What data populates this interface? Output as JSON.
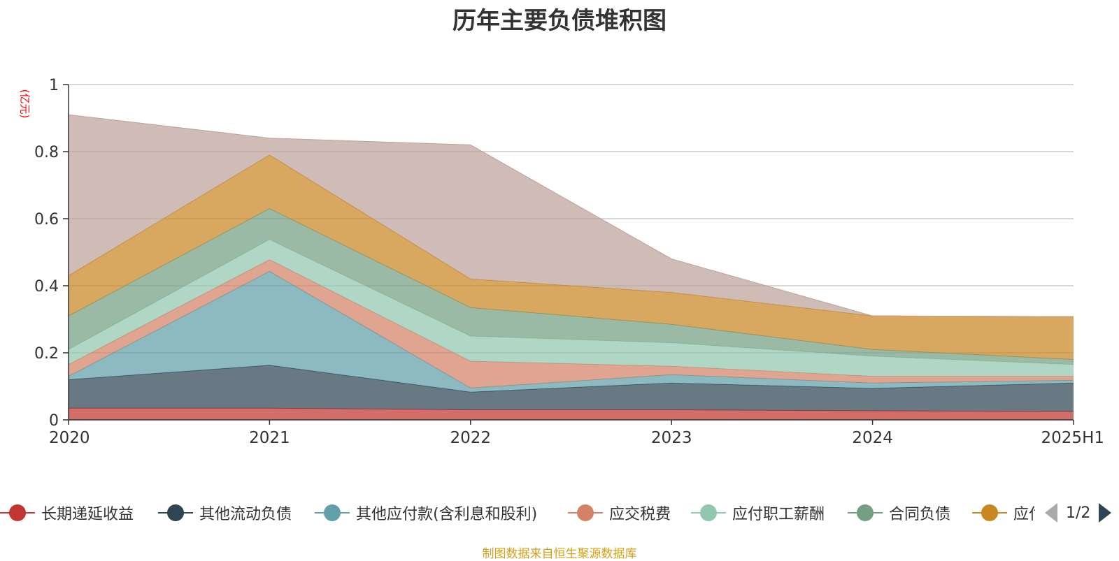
{
  "chart_data": {
    "type": "area",
    "title": "历年主要负债堆积图",
    "unit_label": "(亿元)",
    "categories": [
      "2020",
      "2021",
      "2022",
      "2023",
      "2024",
      "2025H1"
    ],
    "ylim": [
      0,
      1
    ],
    "yticks": [
      "0",
      "0.2",
      "0.4",
      "0.6",
      "0.8",
      "1"
    ],
    "stacked": true,
    "grid": true,
    "series": [
      {
        "name": "长期递延收益",
        "color": "#c23531",
        "values": [
          0.035,
          0.035,
          0.03,
          0.03,
          0.027,
          0.025
        ]
      },
      {
        "name": "其他流动负债",
        "color": "#2f4554",
        "values": [
          0.085,
          0.128,
          0.053,
          0.08,
          0.067,
          0.085
        ]
      },
      {
        "name": "其他应付款(含利息和股利)",
        "color": "#61a0a8",
        "values": [
          0.01,
          0.28,
          0.012,
          0.025,
          0.016,
          0.008
        ]
      },
      {
        "name": "应交税费",
        "color": "#d48265",
        "values": [
          0.035,
          0.035,
          0.08,
          0.025,
          0.02,
          0.012
        ]
      },
      {
        "name": "应付职工薪酬",
        "color": "#91c7ae",
        "values": [
          0.045,
          0.06,
          0.075,
          0.07,
          0.06,
          0.035
        ]
      },
      {
        "name": "合同负债",
        "color": "#749f83",
        "values": [
          0.1,
          0.092,
          0.085,
          0.055,
          0.02,
          0.015
        ]
      },
      {
        "name": "应付账款",
        "color": "#ca8622",
        "values": [
          0.12,
          0.16,
          0.085,
          0.095,
          0.1,
          0.128
        ]
      },
      {
        "name": "",
        "color": "#bda29a",
        "values": [
          0.48,
          0.05,
          0.4,
          0.1,
          0.0,
          0.0
        ]
      }
    ]
  },
  "legend": {
    "items": [
      {
        "label": "长期递延收益",
        "color": "#c23531"
      },
      {
        "label": "其他流动负债",
        "color": "#2f4554"
      },
      {
        "label": "其他应付款(含利息和股利)",
        "color": "#61a0a8"
      },
      {
        "label": "应交税费",
        "color": "#d48265"
      },
      {
        "label": "应付职工薪酬",
        "color": "#91c7ae"
      },
      {
        "label": "合同负债",
        "color": "#749f83"
      },
      {
        "label": "应付账款",
        "color": "#ca8622"
      }
    ],
    "page": "1/2"
  },
  "source": "制图数据来自恒生聚源数据库"
}
